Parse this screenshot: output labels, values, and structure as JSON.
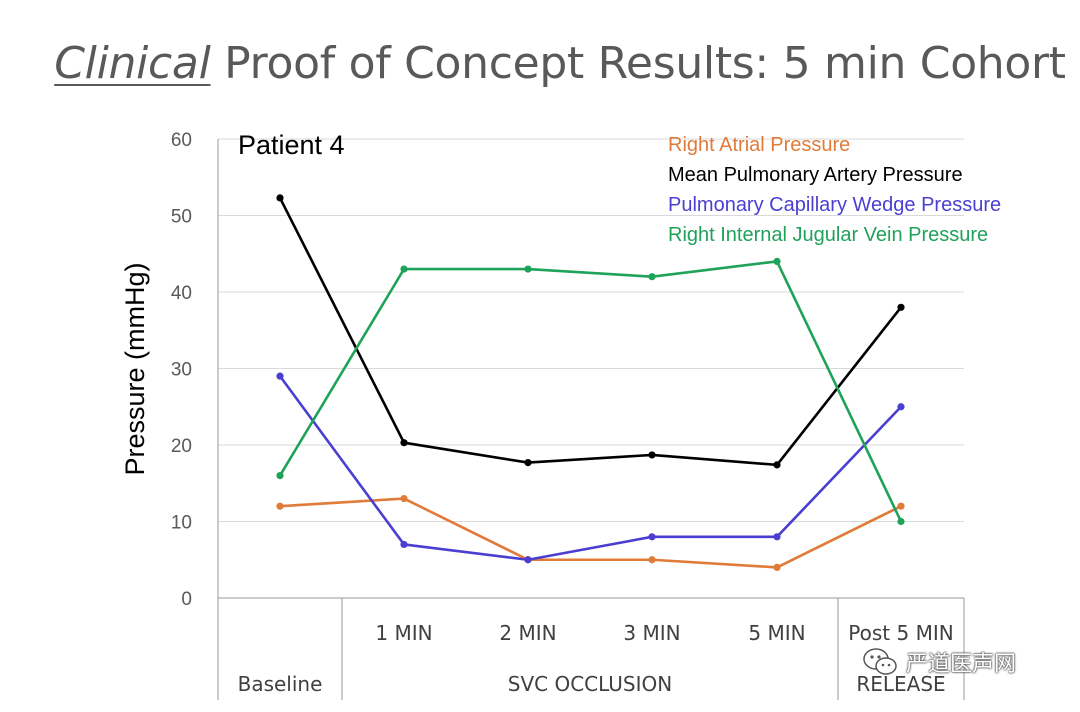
{
  "slide": {
    "title_em": "Clinical",
    "title_rest": " Proof of Concept Results: 5 min Cohort"
  },
  "watermark": {
    "text": "严道医声网",
    "icon": "wechat-logo-icon"
  },
  "chart_data": {
    "type": "line",
    "annotation": "Patient 4",
    "ylabel": "Pressure (mmHg)",
    "xlabel": "",
    "ylim": [
      0,
      60
    ],
    "yticks": [
      0,
      10,
      20,
      30,
      40,
      50,
      60
    ],
    "grid": true,
    "legend_position": "top-right",
    "categories": [
      "",
      "1 MIN",
      "2 MIN",
      "3 MIN",
      "5 MIN",
      "Post 5 MIN"
    ],
    "category_groups": [
      {
        "label": "Baseline",
        "span": [
          0,
          0
        ]
      },
      {
        "label": "SVC OCCLUSION",
        "span": [
          1,
          4
        ]
      },
      {
        "label": "RELEASE",
        "span": [
          5,
          5
        ]
      }
    ],
    "series": [
      {
        "name": "Right Atrial Pressure",
        "color": "#E07B39",
        "values": [
          12,
          13,
          5,
          5,
          4,
          12
        ]
      },
      {
        "name": "Mean Pulmonary Artery Pressure",
        "color": "#000000",
        "values": [
          52.3,
          20.3,
          17.7,
          18.7,
          17.4,
          38
        ]
      },
      {
        "name": "Pulmonary Capillary Wedge Pressure",
        "color": "#4B3FD1",
        "values": [
          29,
          7,
          5,
          8,
          8,
          25
        ]
      },
      {
        "name": "Right Internal Jugular Vein Pressure",
        "color": "#1FA25A",
        "values": [
          16,
          43,
          43,
          42,
          44,
          10
        ]
      }
    ]
  }
}
